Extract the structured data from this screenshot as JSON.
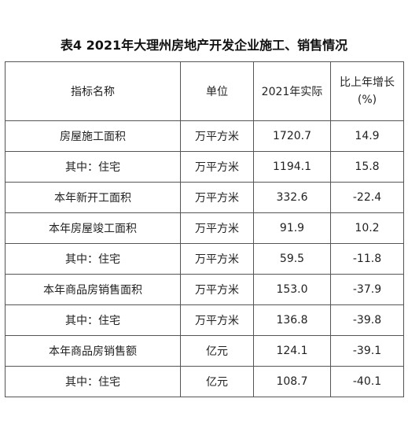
{
  "title": "表4  2021年大理州房地产开发企业施工、销售情况",
  "table": {
    "headers": {
      "indicator": "指标名称",
      "unit": "单位",
      "actual": "2021年实际",
      "growth_line1": "比上年增长",
      "growth_line2": "(%)"
    },
    "rows": [
      {
        "name": "房屋施工面积",
        "unit": "万平方米",
        "actual": "1720.7",
        "growth": "14.9"
      },
      {
        "name": "其中：住宅",
        "unit": "万平方米",
        "actual": "1194.1",
        "growth": "15.8"
      },
      {
        "name": "本年新开工面积",
        "unit": "万平方米",
        "actual": "332.6",
        "growth": "-22.4"
      },
      {
        "name": "本年房屋竣工面积",
        "unit": "万平方米",
        "actual": "91.9",
        "growth": "10.2"
      },
      {
        "name": "其中：住宅",
        "unit": "万平方米",
        "actual": "59.5",
        "growth": "-11.8"
      },
      {
        "name": "本年商品房销售面积",
        "unit": "万平方米",
        "actual": "153.0",
        "growth": "-37.9"
      },
      {
        "name": "其中：住宅",
        "unit": "万平方米",
        "actual": "136.8",
        "growth": "-39.8"
      },
      {
        "name": "本年商品房销售额",
        "unit": "亿元",
        "actual": "124.1",
        "growth": "-39.1"
      },
      {
        "name": "其中：住宅",
        "unit": "亿元",
        "actual": "108.7",
        "growth": "-40.1"
      }
    ]
  }
}
